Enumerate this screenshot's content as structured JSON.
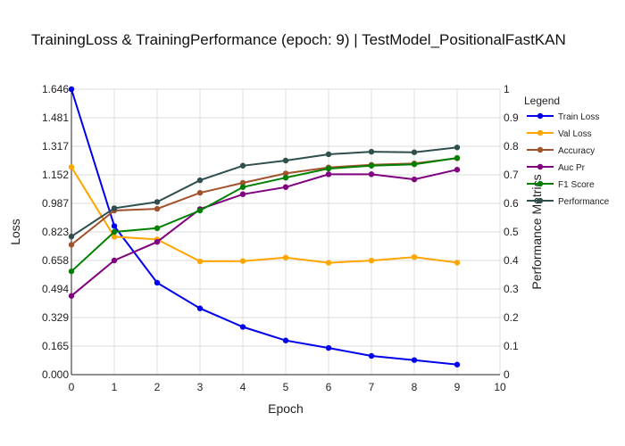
{
  "chart_data": {
    "type": "line",
    "title": "TrainingLoss & TrainingPerformance (epoch: 9) | TestModel_PositionalFastKAN",
    "xlabel": "Epoch",
    "ylabel_left": "Loss",
    "ylabel_right": "Performance Metrics",
    "xlim": [
      0,
      10
    ],
    "ylim_left": [
      0,
      1.646
    ],
    "ylim_right": [
      0,
      1
    ],
    "x_ticks": [
      "0",
      "1",
      "2",
      "3",
      "4",
      "5",
      "6",
      "7",
      "8",
      "9",
      "10"
    ],
    "y_left_ticks": [
      "0.000",
      "0.165",
      "0.329",
      "0.494",
      "0.658",
      "0.823",
      "0.987",
      "1.152",
      "1.317",
      "1.481",
      "1.646"
    ],
    "y_right_ticks": [
      "0",
      "0.1",
      "0.2",
      "0.3",
      "0.4",
      "0.5",
      "0.6",
      "0.7",
      "0.8",
      "0.9",
      "1"
    ],
    "grid": true,
    "legend_title": "Legend",
    "legend_position": "right",
    "x": [
      0,
      1,
      2,
      3,
      4,
      5,
      6,
      7,
      8,
      9
    ],
    "series": [
      {
        "name": "Train Loss",
        "axis": "left",
        "color": "#0000ee",
        "values": [
          1.646,
          0.857,
          0.53,
          0.382,
          0.275,
          0.197,
          0.154,
          0.108,
          0.084,
          0.058
        ]
      },
      {
        "name": "Val Loss",
        "axis": "left",
        "color": "#ffa500",
        "values": [
          1.197,
          0.795,
          0.78,
          0.653,
          0.655,
          0.675,
          0.645,
          0.658,
          0.678,
          0.646
        ]
      },
      {
        "name": "Accuracy",
        "axis": "right",
        "color": "#a0522d",
        "values": [
          0.455,
          0.575,
          0.581,
          0.637,
          0.672,
          0.705,
          0.726,
          0.735,
          0.74,
          0.758
        ]
      },
      {
        "name": "Auc Pr",
        "axis": "right",
        "color": "#800080",
        "values": [
          0.276,
          0.4,
          0.465,
          0.58,
          0.632,
          0.657,
          0.702,
          0.702,
          0.684,
          0.718
        ]
      },
      {
        "name": "F1 Score",
        "axis": "right",
        "color": "#008000",
        "values": [
          0.362,
          0.5,
          0.513,
          0.575,
          0.657,
          0.69,
          0.722,
          0.732,
          0.737,
          0.759
        ]
      },
      {
        "name": "Performance",
        "axis": "right",
        "color": "#2f4f4f",
        "values": [
          0.484,
          0.583,
          0.605,
          0.681,
          0.732,
          0.75,
          0.772,
          0.781,
          0.779,
          0.796
        ]
      }
    ]
  }
}
